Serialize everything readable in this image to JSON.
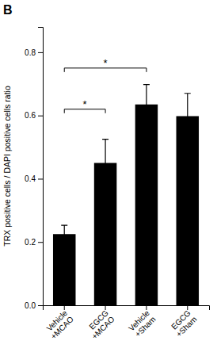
{
  "chart_data": {
    "type": "bar",
    "panel_label": "B",
    "categories": [
      "Vehicle\n+MCAO",
      "EGCG\n+MCAO",
      "Vehicle\n+Sham",
      "EGCG\n+Sham"
    ],
    "values": [
      0.225,
      0.45,
      0.635,
      0.598
    ],
    "errors": [
      0.028,
      0.075,
      0.063,
      0.072
    ],
    "color": "#000000",
    "ylabel": "TRX positive cells / DAPI positive cells ratio",
    "ylim": [
      0,
      0.88
    ],
    "yticks": [
      {
        "value": 0.0,
        "label": "0.0"
      },
      0.2,
      0.4,
      0.6,
      0.8
    ],
    "brackets": [
      {
        "from": 0,
        "to": 1,
        "y": 0.62,
        "label": "*"
      },
      {
        "from": 0,
        "to": 2,
        "y": 0.75,
        "label": "*"
      }
    ]
  }
}
